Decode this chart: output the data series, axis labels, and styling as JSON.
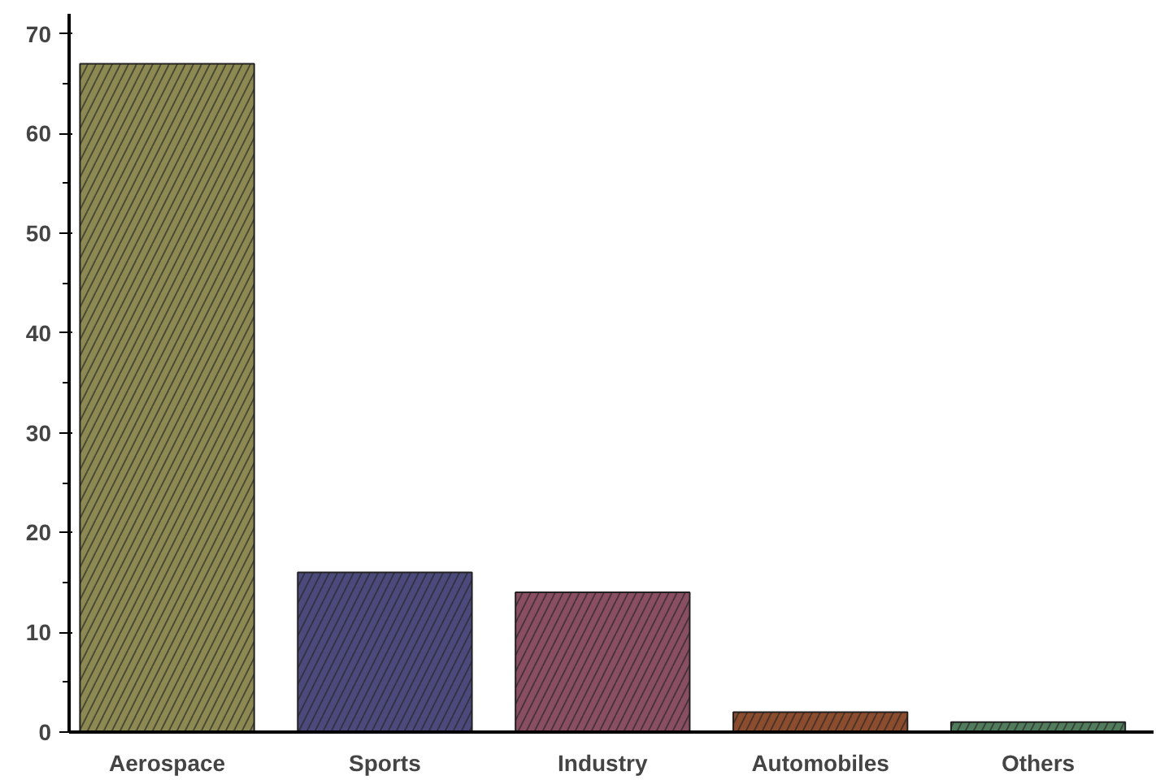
{
  "chart_data": {
    "type": "bar",
    "categories": [
      "Aerospace",
      "Sports",
      "Industry",
      "Automobiles",
      "Others"
    ],
    "values": [
      67,
      16,
      14,
      2,
      1
    ],
    "colors": [
      "#8c8a52",
      "#4c4a7c",
      "#8a4e63",
      "#8b4d2e",
      "#507c5c"
    ],
    "ylim": [
      0,
      72
    ],
    "yticks": [
      0,
      10,
      20,
      30,
      40,
      50,
      60,
      70
    ],
    "grid": false
  }
}
